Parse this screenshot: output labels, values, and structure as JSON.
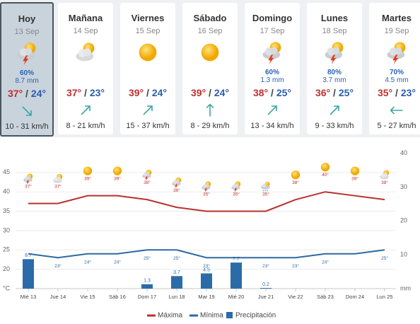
{
  "forecast_cards": [
    {
      "day": "Hoy",
      "date": "13 Sep",
      "precip_probability": "60%",
      "precip_amount": "8.7 mm",
      "max": "37°",
      "min": "24°",
      "wind": "10 - 31 km/h"
    },
    {
      "day": "Mañana",
      "date": "14 Sep",
      "max": "37°",
      "min": "23°",
      "wind": "8 - 21 km/h"
    },
    {
      "day": "Viernes",
      "date": "15 Sep",
      "max": "39°",
      "min": "24°",
      "wind": "15 - 37 km/h"
    },
    {
      "day": "Sábado",
      "date": "16 Sep",
      "max": "39°",
      "min": "24°",
      "wind": "8 - 29 km/h"
    },
    {
      "day": "Domingo",
      "date": "17 Sep",
      "precip_probability": "60%",
      "precip_amount": "1.3 mm",
      "max": "38°",
      "min": "25°",
      "wind": "13 - 34 km/h"
    },
    {
      "day": "Lunes",
      "date": "18 Sep",
      "precip_probability": "80%",
      "precip_amount": "3.7 mm",
      "max": "36°",
      "min": "25°",
      "wind": "9 - 33 km/h"
    },
    {
      "day": "Martes",
      "date": "19 Sep",
      "precip_probability": "70%",
      "precip_amount": "4.5 mm",
      "max": "35°",
      "min": "23°",
      "wind": "5 - 27 km/h"
    }
  ],
  "temperature_separator": "/",
  "chart_data": {
    "type": "combo",
    "categories": [
      "Mié 13",
      "Jue 14",
      "Vie 15",
      "Sáb 16",
      "Dom 17",
      "Lun 18",
      "Mar 19",
      "Mié 20",
      "Jue 21",
      "Vie 22",
      "Sáb 23",
      "Dom 24",
      "Lun 25"
    ],
    "series": [
      {
        "name": "Máxima",
        "type": "line",
        "color": "#b8312f",
        "values": [
          37,
          37,
          39,
          39,
          38,
          36,
          35,
          35,
          35,
          38,
          40,
          39,
          38
        ],
        "value_labels": [
          "37°",
          "37°",
          "39°",
          "39°",
          "38°",
          "36°",
          "35°",
          "35°",
          "35°",
          "38°",
          "40°",
          "39°",
          "38°"
        ]
      },
      {
        "name": "Mínima",
        "type": "line",
        "color": "#2c6aa3",
        "values": [
          24,
          23,
          24,
          24,
          25,
          25,
          23,
          23,
          23,
          23,
          24,
          24,
          25
        ],
        "value_labels": [
          null,
          "23°",
          "24°",
          "24°",
          "25°",
          "25°",
          "23°",
          "23°",
          "23°",
          "23°",
          "24°",
          null,
          "25°"
        ]
      },
      {
        "name": "Precipitación",
        "type": "bar",
        "axis": "y2",
        "color": "#2b6ca8",
        "values": [
          8.7,
          0,
          0,
          0,
          1.3,
          3.7,
          4.5,
          7.7,
          0.2,
          0,
          0,
          0,
          0
        ]
      }
    ],
    "ylim": [
      15,
      50
    ],
    "yticks": [
      {
        "value": 15,
        "label": "°C"
      },
      20,
      25,
      30,
      35,
      40,
      45
    ],
    "y2lim": [
      0,
      40
    ],
    "y2ticks": [
      {
        "value": 0,
        "label": "mm"
      },
      10,
      20,
      30,
      40
    ],
    "grid": true,
    "legend": "bottom"
  }
}
